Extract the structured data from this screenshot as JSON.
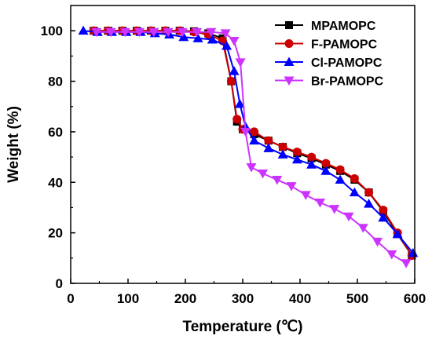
{
  "chart_data": {
    "type": "line",
    "xlabel": "Temperature (℃)",
    "ylabel": "Weight (%)",
    "xlim": [
      0,
      600
    ],
    "ylim": [
      0,
      110
    ],
    "x_ticks": [
      0,
      100,
      200,
      300,
      400,
      500,
      600
    ],
    "y_ticks": [
      0,
      20,
      40,
      60,
      80,
      100
    ],
    "legend_position": "top-right",
    "grid": false,
    "series": [
      {
        "name": "MPAMOPC",
        "color": "#000000",
        "marker": "square",
        "x": [
          40,
          65,
          90,
          115,
          140,
          165,
          190,
          215,
          240,
          265,
          280,
          290,
          300,
          320,
          345,
          370,
          395,
          420,
          445,
          470,
          495,
          520,
          545,
          570,
          595
        ],
        "y": [
          100,
          100,
          100,
          100,
          100,
          100,
          100,
          99.8,
          99,
          97,
          80,
          64,
          61,
          59,
          56.5,
          54,
          51.5,
          49.5,
          47,
          44.5,
          41,
          36,
          28.5,
          19.5,
          11
        ]
      },
      {
        "name": "F-PAMOPC",
        "color": "#cc0000",
        "marker": "circle",
        "x": [
          40,
          65,
          90,
          115,
          140,
          165,
          190,
          215,
          240,
          265,
          280,
          290,
          300,
          320,
          345,
          370,
          395,
          420,
          445,
          470,
          495,
          520,
          545,
          570,
          595
        ],
        "y": [
          100,
          100,
          100,
          100,
          100,
          100,
          100,
          99.5,
          98.5,
          96,
          80,
          65,
          61,
          60,
          56.5,
          54,
          52,
          50,
          47.5,
          45,
          41.5,
          36,
          29,
          20,
          11
        ]
      },
      {
        "name": "Cl-PAMOPC",
        "color": "#0000ff",
        "marker": "triangle-up",
        "x": [
          22,
          47,
          72,
          97,
          122,
          147,
          172,
          197,
          222,
          247,
          272,
          285,
          295,
          305,
          320,
          345,
          370,
          395,
          420,
          445,
          470,
          495,
          520,
          545,
          570,
          597
        ],
        "y": [
          100,
          99.5,
          99.5,
          99.5,
          99.5,
          99,
          98.5,
          97.5,
          97,
          96.5,
          94,
          84,
          71,
          62,
          56.5,
          53.5,
          51,
          49,
          47,
          44.5,
          41,
          36,
          31.5,
          26,
          19.5,
          12
        ]
      },
      {
        "name": "Br-PAMOPC",
        "color": "#cc33ff",
        "marker": "triangle-down",
        "x": [
          45,
          70,
          95,
          120,
          145,
          170,
          195,
          220,
          245,
          270,
          285,
          296,
          305,
          315,
          335,
          360,
          385,
          410,
          435,
          460,
          485,
          510,
          535,
          560,
          585
        ],
        "y": [
          99.5,
          99.5,
          99.5,
          99.5,
          99.5,
          99.5,
          99.5,
          99.5,
          99.5,
          99,
          96,
          87.5,
          60,
          46,
          43.5,
          41,
          38.5,
          35,
          32,
          29.5,
          26.5,
          22,
          16.5,
          11.5,
          8
        ]
      }
    ]
  }
}
